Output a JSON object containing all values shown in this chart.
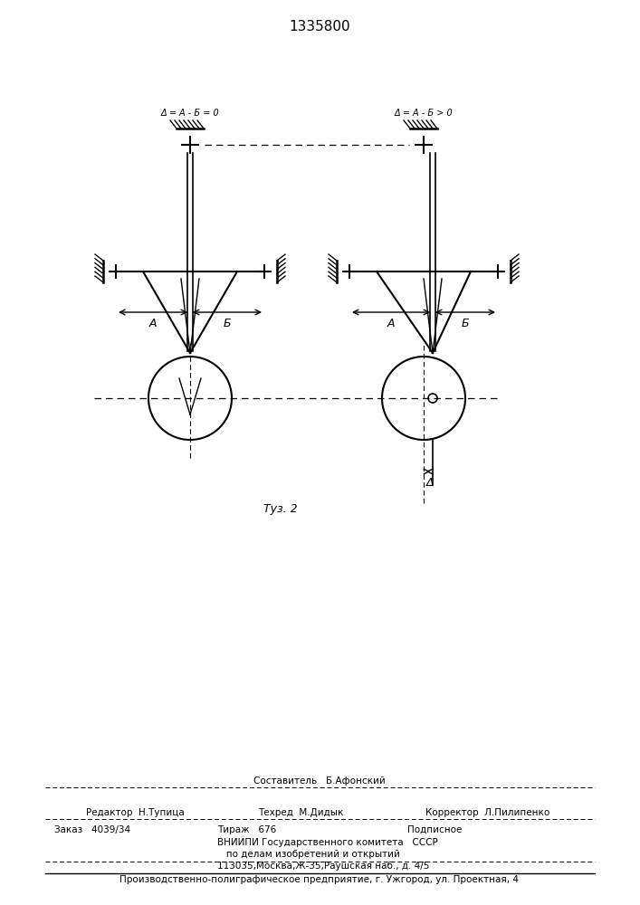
{
  "title": "1335800",
  "fig_label": "Τуз. 2",
  "left_label": "Δ = A - Б = 0",
  "right_label": "Δ = A - Б > 0",
  "label_A": "A",
  "label_B": "Б",
  "label_delta": "Δ",
  "bg_color": "#ffffff",
  "line_color": "#000000",
  "footer_line1": "Составитель   Б.Афонский",
  "footer_line2a": "Редактор  Н.Тупица",
  "footer_line2b": "Техред  М.Дидык",
  "footer_line2c": "Корректор  Л.Пилипенко",
  "footer_line3a": "Заказ   4039/34",
  "footer_line3b": "Тираж   676",
  "footer_line3c": "Подписное",
  "footer_line4": "ВНИИПИ Государственного комитета   СССР",
  "footer_line5": "   по делам изобретений и открытий",
  "footer_line6": "113035,Москва,Ж-35,Раушская наб., д. 4/5",
  "footer_line7": "Производственно-полиграфическое предприятие, г. Ужгород, ул. Проектная, 4"
}
